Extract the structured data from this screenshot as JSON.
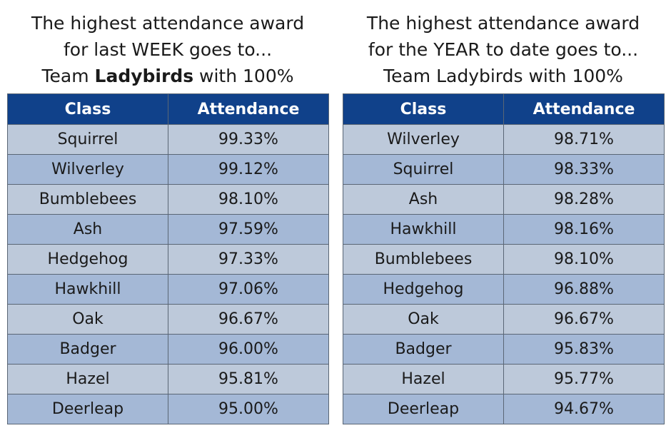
{
  "week": {
    "heading_line1": "The highest attendance award",
    "heading_line2": "for last WEEK goes to...",
    "heading_line3_prefix": "Team ",
    "heading_line3_bold": "Ladybirds",
    "heading_line3_suffix": " with 100%",
    "columns": [
      "Class",
      "Attendance"
    ],
    "rows": [
      [
        "Squirrel",
        "99.33%"
      ],
      [
        "Wilverley",
        "99.12%"
      ],
      [
        "Bumblebees",
        "98.10%"
      ],
      [
        "Ash",
        "97.59%"
      ],
      [
        "Hedgehog",
        "97.33%"
      ],
      [
        "Hawkhill",
        "97.06%"
      ],
      [
        "Oak",
        "96.67%"
      ],
      [
        "Badger",
        "96.00%"
      ],
      [
        "Hazel",
        "95.81%"
      ],
      [
        "Deerleap",
        "95.00%"
      ]
    ]
  },
  "year": {
    "heading_line1": "The highest attendance award",
    "heading_line2": "for the YEAR to date goes to...",
    "heading_line3": "Team Ladybirds with 100%",
    "columns": [
      "Class",
      "Attendance"
    ],
    "rows": [
      [
        "Wilverley",
        "98.71%"
      ],
      [
        "Squirrel",
        "98.33%"
      ],
      [
        "Ash",
        "98.28%"
      ],
      [
        "Hawkhill",
        "98.16%"
      ],
      [
        "Bumblebees",
        "98.10%"
      ],
      [
        "Hedgehog",
        "96.88%"
      ],
      [
        "Oak",
        "96.67%"
      ],
      [
        "Badger",
        "95.83%"
      ],
      [
        "Hazel",
        "95.77%"
      ],
      [
        "Deerleap",
        "94.67%"
      ]
    ]
  },
  "colors": {
    "header_bg": "#10418a",
    "row_light": "#bdc9da",
    "row_dark": "#a4b8d6",
    "border": "#5a6675"
  }
}
